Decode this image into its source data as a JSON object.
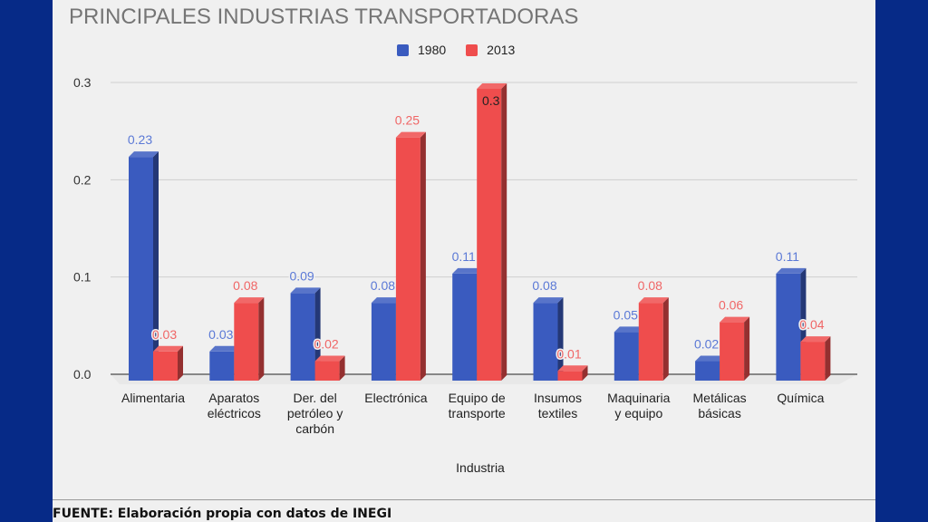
{
  "chart_data": {
    "type": "bar",
    "title": "PRINCIPALES INDUSTRIAS TRANSPORTADORAS",
    "xlabel": "Industria",
    "ylabel": "",
    "ylim": [
      0,
      0.3
    ],
    "yticks": [
      "0.0",
      "0.1",
      "0.2",
      "0.3"
    ],
    "grid": true,
    "legend_position": "top",
    "style": "3d-column",
    "categories": [
      [
        "Alimentaria"
      ],
      [
        "Aparatos",
        "eléctricos"
      ],
      [
        "Der. del",
        "petróleo y",
        "carbón"
      ],
      [
        "Electrónica"
      ],
      [
        "Equipo de",
        "transporte"
      ],
      [
        "Insumos",
        "textiles"
      ],
      [
        "Maquinaria",
        "y equipo"
      ],
      [
        "Metálicas",
        "básicas"
      ],
      [
        "Química"
      ]
    ],
    "series": [
      {
        "name": "1980",
        "color": "#3a5bbf",
        "values": [
          0.23,
          0.03,
          0.09,
          0.08,
          0.11,
          0.08,
          0.05,
          0.02,
          0.11
        ],
        "labels": [
          "0.23",
          "0.03",
          "0.09",
          "0.08",
          "0.11",
          "0.08",
          "0.05",
          "0.02",
          "0.11"
        ]
      },
      {
        "name": "2013",
        "color": "#ef4d4d",
        "values": [
          0.03,
          0.08,
          0.02,
          0.25,
          0.3,
          0.01,
          0.08,
          0.06,
          0.04
        ],
        "labels": [
          "0.03",
          "0.08",
          "0.02",
          "0.25",
          "0.3",
          "0.01",
          "0.08",
          "0.06",
          "0.04"
        ]
      }
    ]
  },
  "footer": {
    "source": "FUENTE: Elaboración propia con datos de INEGI"
  }
}
